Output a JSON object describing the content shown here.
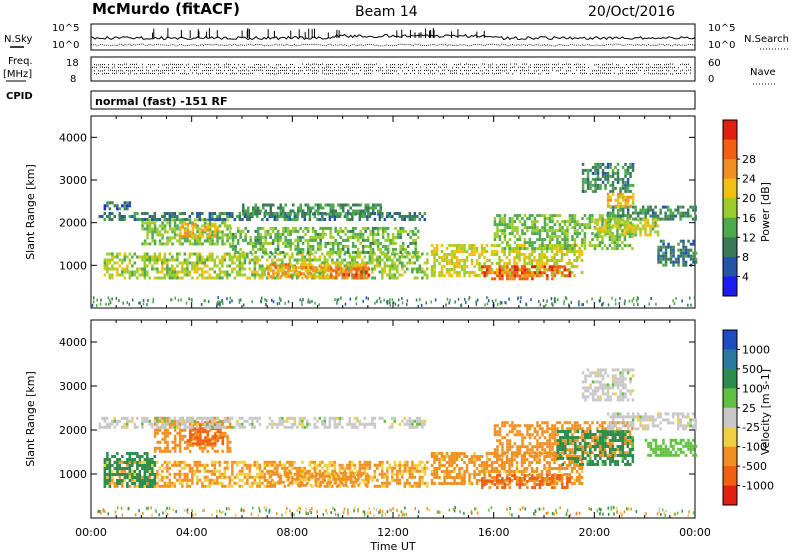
{
  "header": {
    "station": "McMurdo (fitACF)",
    "beam": "Beam 14",
    "date": "20/Oct/2016",
    "left_labels": {
      "nsky": "N.Sky",
      "freq": "Freq.",
      "freq_unit": "[MHz]",
      "cpid": "CPID"
    },
    "right_labels": {
      "nsearch": "N.Search",
      "nave": "Nave"
    },
    "nsky_ticks": [
      "10^5",
      "10^0"
    ],
    "nsearch_ticks": [
      "10^5",
      "10^0"
    ],
    "freq_ticks": [
      "18",
      "8"
    ],
    "nave_ticks": [
      "60",
      "0"
    ],
    "cpid_text": "normal (fast) -151 RF"
  },
  "chart_data": [
    {
      "type": "heatmap",
      "name": "power-panel",
      "xlabel": "",
      "ylabel": "Slant Range [km]",
      "ylim": [
        0,
        4500
      ],
      "yticks": [
        "1000",
        "2000",
        "3000",
        "4000"
      ],
      "xlim": [
        "00:00",
        "24:00"
      ],
      "colorbar": {
        "label": "Power [dB]",
        "ticks": [
          "4",
          "8",
          "12",
          "16",
          "20",
          "24",
          "28"
        ],
        "colors": [
          "#1c1cf0",
          "#2454a8",
          "#3a7a5a",
          "#4caa4c",
          "#9ccc2c",
          "#f0c010",
          "#f09020",
          "#f06010",
          "#e02010"
        ]
      },
      "bands": [
        {
          "start": 0.5,
          "end": 13.4,
          "lo": 700,
          "hi": 1300,
          "value": 14
        },
        {
          "start": 2.0,
          "end": 5.5,
          "lo": 1500,
          "hi": 2100,
          "value": 12
        },
        {
          "start": 3.5,
          "end": 5.0,
          "lo": 1700,
          "hi": 2000,
          "value": 20
        },
        {
          "start": 0.3,
          "end": 13.3,
          "lo": 2050,
          "hi": 2250,
          "value": 6
        },
        {
          "start": 0.5,
          "end": 1.5,
          "lo": 2300,
          "hi": 2500,
          "value": 5
        },
        {
          "start": 5.5,
          "end": 13.0,
          "lo": 1300,
          "hi": 1900,
          "value": 11
        },
        {
          "start": 6.0,
          "end": 11.5,
          "lo": 2200,
          "hi": 2450,
          "value": 8
        },
        {
          "start": 7.0,
          "end": 11.0,
          "lo": 750,
          "hi": 1050,
          "value": 21
        },
        {
          "start": 9.5,
          "end": 11.0,
          "lo": 700,
          "hi": 950,
          "value": 25
        },
        {
          "start": 13.5,
          "end": 19.5,
          "lo": 750,
          "hi": 1500,
          "value": 16
        },
        {
          "start": 15.5,
          "end": 19.0,
          "lo": 700,
          "hi": 1000,
          "value": 26
        },
        {
          "start": 16.0,
          "end": 21.5,
          "lo": 1400,
          "hi": 2200,
          "value": 12
        },
        {
          "start": 19.5,
          "end": 21.5,
          "lo": 2700,
          "hi": 3400,
          "value": 7
        },
        {
          "start": 20.5,
          "end": 24.0,
          "lo": 2050,
          "hi": 2400,
          "value": 7
        },
        {
          "start": 20.0,
          "end": 22.5,
          "lo": 1700,
          "hi": 2100,
          "value": 15
        },
        {
          "start": 20.5,
          "end": 21.5,
          "lo": 2400,
          "hi": 2700,
          "value": 19
        },
        {
          "start": 22.5,
          "end": 24.0,
          "lo": 1000,
          "hi": 1600,
          "value": 6
        }
      ]
    },
    {
      "type": "heatmap",
      "name": "velocity-panel",
      "xlabel": "Time UT",
      "ylabel": "Slant Range [km]",
      "ylim": [
        0,
        4500
      ],
      "yticks": [
        "1000",
        "2000",
        "3000",
        "4000"
      ],
      "xlim": [
        "00:00",
        "24:00"
      ],
      "xticks": [
        "00:00",
        "04:00",
        "08:00",
        "12:00",
        "16:00",
        "20:00",
        "00:00"
      ],
      "colorbar": {
        "label": "Velocity [m s-1]",
        "ticks": [
          "1000",
          "500",
          "100",
          "25",
          "-25",
          "-100",
          "-500",
          "-1000"
        ],
        "colors": [
          "#1c4cc0",
          "#2a78a0",
          "#2c8c4c",
          "#60c040",
          "#c8c8c8",
          "#f0d040",
          "#f09020",
          "#f06010",
          "#e02010"
        ]
      },
      "bands": [
        {
          "start": 0.5,
          "end": 13.4,
          "lo": 700,
          "hi": 1300,
          "value": -110
        },
        {
          "start": 2.5,
          "end": 5.5,
          "lo": 1500,
          "hi": 2300,
          "value": -200
        },
        {
          "start": 3.8,
          "end": 5.2,
          "lo": 1700,
          "hi": 2200,
          "value": -700
        },
        {
          "start": 0.3,
          "end": 13.3,
          "lo": 2050,
          "hi": 2300,
          "value": 0
        },
        {
          "start": 0.5,
          "end": 2.5,
          "lo": 700,
          "hi": 1500,
          "value": 200
        },
        {
          "start": 7.0,
          "end": 11.0,
          "lo": 750,
          "hi": 1050,
          "value": -150
        },
        {
          "start": 13.5,
          "end": 19.5,
          "lo": 750,
          "hi": 1500,
          "value": -150
        },
        {
          "start": 15.5,
          "end": 19.0,
          "lo": 700,
          "hi": 1000,
          "value": -600
        },
        {
          "start": 16.0,
          "end": 21.5,
          "lo": 1400,
          "hi": 2200,
          "value": -300
        },
        {
          "start": 18.5,
          "end": 21.5,
          "lo": 1200,
          "hi": 2000,
          "value": 150
        },
        {
          "start": 19.5,
          "end": 21.5,
          "lo": 2700,
          "hi": 3400,
          "value": 0
        },
        {
          "start": 20.5,
          "end": 24.0,
          "lo": 2050,
          "hi": 2400,
          "value": 0
        },
        {
          "start": 22.0,
          "end": 24.0,
          "lo": 1400,
          "hi": 1800,
          "value": 60
        }
      ]
    }
  ]
}
